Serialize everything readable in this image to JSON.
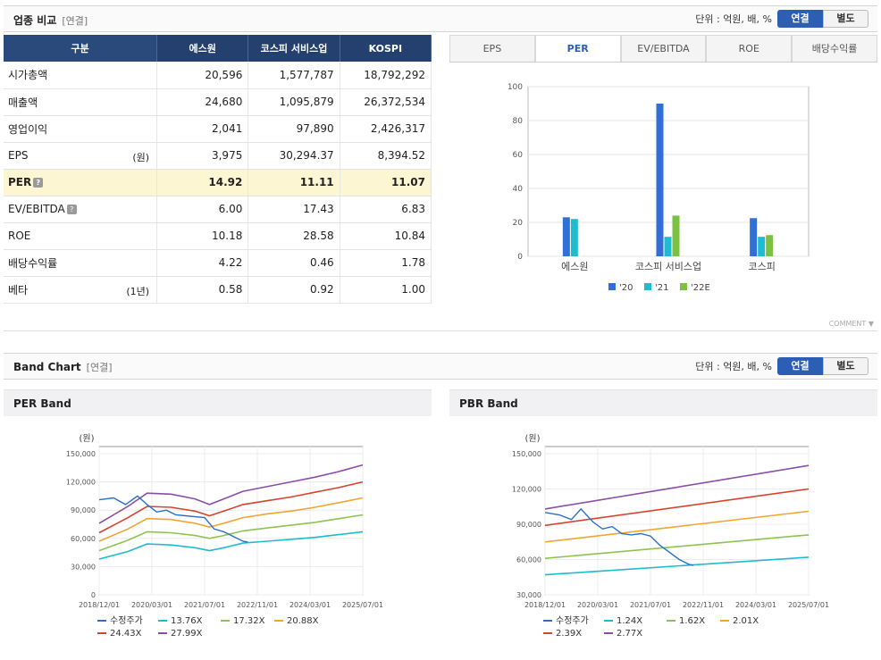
{
  "industry": {
    "title": "업종 비교",
    "subtitle": "[연결]",
    "unit_label": "단위 : 억원, 배, %",
    "toggle_on": "연결",
    "toggle_off": "별도",
    "columns": [
      "구분",
      "에스원",
      "코스피 서비스업",
      "KOSPI"
    ],
    "rows": [
      {
        "label": "시가총액",
        "note": "",
        "values": [
          "20,596",
          "1,577,787",
          "18,792,292"
        ]
      },
      {
        "label": "매출액",
        "note": "",
        "values": [
          "24,680",
          "1,095,879",
          "26,372,534"
        ]
      },
      {
        "label": "영업이익",
        "note": "",
        "values": [
          "2,041",
          "97,890",
          "2,426,317"
        ]
      },
      {
        "label": "EPS",
        "note": "(원)",
        "values": [
          "3,975",
          "30,294.37",
          "8,394.52"
        ]
      },
      {
        "label": "PER",
        "note": "",
        "values": [
          "14.92",
          "11.11",
          "11.07"
        ]
      },
      {
        "label": "EV/EBITDA",
        "note": "",
        "values": [
          "6.00",
          "17.43",
          "6.83"
        ]
      },
      {
        "label": "ROE",
        "note": "",
        "values": [
          "10.18",
          "28.58",
          "10.84"
        ]
      },
      {
        "label": "배당수익률",
        "note": "",
        "values": [
          "4.22",
          "0.46",
          "1.78"
        ]
      },
      {
        "label": "베타",
        "note": "(1년)",
        "values": [
          "0.58",
          "0.92",
          "1.00"
        ]
      }
    ],
    "tabs": [
      "EPS",
      "PER",
      "EV/EBITDA",
      "ROE",
      "배당수익률"
    ],
    "comment_label": "COMMENT ▼"
  },
  "band": {
    "title": "Band Chart",
    "subtitle": "[연결]",
    "unit_label": "단위 : 억원, 배, %",
    "toggle_on": "연결",
    "toggle_off": "별도"
  },
  "colors": {
    "header_navy": "#23406e",
    "accent_blue": "#2c5fb3",
    "highlight_row": "#fdf6d3",
    "bar_20": "#2f6fd6",
    "bar_21": "#1fbcd0",
    "bar_22e": "#7cc242"
  },
  "chart_data": [
    {
      "type": "bar",
      "title": "",
      "categories": [
        "에스원",
        "코스피 서비스업",
        "코스피"
      ],
      "series": [
        {
          "name": "'20",
          "values": [
            23,
            90,
            22.5
          ],
          "color": "#2f6fd6"
        },
        {
          "name": "'21",
          "values": [
            22,
            11.5,
            11.5
          ],
          "color": "#1fbcd0"
        },
        {
          "name": "'22E",
          "values": [
            null,
            24,
            12.5
          ],
          "color": "#7cc242"
        }
      ],
      "ylim": [
        0,
        100
      ],
      "yticks": [
        0,
        20,
        40,
        60,
        80,
        100
      ],
      "legend": "bottom"
    },
    {
      "type": "line",
      "title": "PER Band",
      "ylabel": "(원)",
      "ylim": [
        0,
        150000
      ],
      "yticks": [
        "0",
        "30,000",
        "60,000",
        "90,000",
        "120,000",
        "150,000"
      ],
      "xticks": [
        "2018/12/01",
        "2020/03/01",
        "2021/07/01",
        "2022/11/01",
        "2024/03/01",
        "2025/07/01"
      ],
      "series": [
        {
          "name": "수정주가",
          "color": "#2a6fc9",
          "points": [
            [
              0,
              101000
            ],
            [
              0.3,
              103000
            ],
            [
              0.55,
              96000
            ],
            [
              0.8,
              105000
            ],
            [
              1.0,
              96000
            ],
            [
              1.2,
              88000
            ],
            [
              1.4,
              90000
            ],
            [
              1.6,
              85000
            ],
            [
              1.8,
              84000
            ],
            [
              2.0,
              83000
            ],
            [
              2.2,
              82000
            ],
            [
              2.4,
              70000
            ],
            [
              2.6,
              67000
            ],
            [
              2.8,
              62000
            ],
            [
              3.0,
              57000
            ],
            [
              3.1,
              56000
            ]
          ]
        },
        {
          "name": "13.76X",
          "color": "#1fbcd0",
          "points": [
            [
              0,
              38000
            ],
            [
              0.6,
              46000
            ],
            [
              1.0,
              54000
            ],
            [
              1.5,
              53000
            ],
            [
              2.0,
              50000
            ],
            [
              2.3,
              47000
            ],
            [
              2.6,
              50000
            ],
            [
              3.0,
              55000
            ],
            [
              3.5,
              57000
            ],
            [
              4.0,
              59000
            ],
            [
              4.5,
              61000
            ],
            [
              5.0,
              64000
            ],
            [
              5.5,
              67000
            ]
          ]
        },
        {
          "name": "17.32X",
          "color": "#8dc450",
          "points": [
            [
              0,
              47000
            ],
            [
              0.6,
              58000
            ],
            [
              1.0,
              67000
            ],
            [
              1.5,
              66000
            ],
            [
              2.0,
              63000
            ],
            [
              2.3,
              60000
            ],
            [
              2.6,
              63000
            ],
            [
              3.0,
              68000
            ],
            [
              3.5,
              71000
            ],
            [
              4.0,
              74000
            ],
            [
              4.5,
              77000
            ],
            [
              5.0,
              81000
            ],
            [
              5.5,
              85000
            ]
          ]
        },
        {
          "name": "20.88X",
          "color": "#f0a530",
          "points": [
            [
              0,
              57000
            ],
            [
              0.6,
              70000
            ],
            [
              1.0,
              81000
            ],
            [
              1.5,
              80000
            ],
            [
              2.0,
              76000
            ],
            [
              2.3,
              72000
            ],
            [
              2.6,
              76000
            ],
            [
              3.0,
              82000
            ],
            [
              3.5,
              86000
            ],
            [
              4.0,
              89000
            ],
            [
              4.5,
              93000
            ],
            [
              5.0,
              98000
            ],
            [
              5.5,
              103000
            ]
          ]
        },
        {
          "name": "24.43X",
          "color": "#d8432f",
          "points": [
            [
              0,
              66000
            ],
            [
              0.6,
              82000
            ],
            [
              1.0,
              94000
            ],
            [
              1.5,
              93000
            ],
            [
              2.0,
              89000
            ],
            [
              2.3,
              84000
            ],
            [
              2.6,
              89000
            ],
            [
              3.0,
              96000
            ],
            [
              3.5,
              100000
            ],
            [
              4.0,
              104000
            ],
            [
              4.5,
              109000
            ],
            [
              5.0,
              114000
            ],
            [
              5.5,
              120000
            ]
          ]
        },
        {
          "name": "27.99X",
          "color": "#8a4ea8",
          "points": [
            [
              0,
              76000
            ],
            [
              0.6,
              94000
            ],
            [
              1.0,
              108000
            ],
            [
              1.5,
              107000
            ],
            [
              2.0,
              102000
            ],
            [
              2.3,
              96000
            ],
            [
              2.6,
              102000
            ],
            [
              3.0,
              110000
            ],
            [
              3.5,
              115000
            ],
            [
              4.0,
              120000
            ],
            [
              4.5,
              125000
            ],
            [
              5.0,
              131000
            ],
            [
              5.5,
              138000
            ]
          ]
        }
      ]
    },
    {
      "type": "line",
      "title": "PBR Band",
      "ylabel": "(원)",
      "ylim": [
        30000,
        150000
      ],
      "yticks": [
        "30,000",
        "60,000",
        "90,000",
        "120,000",
        "150,000"
      ],
      "xticks": [
        "2018/12/01",
        "2020/03/01",
        "2021/07/01",
        "2022/11/01",
        "2024/03/01",
        "2025/07/01"
      ],
      "series": [
        {
          "name": "수정주가",
          "color": "#2a6fc9",
          "points": [
            [
              0,
              100000
            ],
            [
              0.3,
              98000
            ],
            [
              0.55,
              94000
            ],
            [
              0.75,
              103000
            ],
            [
              1.0,
              92000
            ],
            [
              1.2,
              86000
            ],
            [
              1.4,
              88000
            ],
            [
              1.6,
              82000
            ],
            [
              1.8,
              81000
            ],
            [
              2.0,
              82000
            ],
            [
              2.2,
              80000
            ],
            [
              2.4,
              72000
            ],
            [
              2.6,
              66000
            ],
            [
              2.8,
              60000
            ],
            [
              3.0,
              56000
            ],
            [
              3.1,
              55000
            ]
          ]
        },
        {
          "name": "1.24X",
          "color": "#1fbcd0",
          "points": [
            [
              0,
              47000
            ],
            [
              5.5,
              62000
            ]
          ]
        },
        {
          "name": "1.62X",
          "color": "#8dc450",
          "points": [
            [
              0,
              61000
            ],
            [
              5.5,
              81000
            ]
          ]
        },
        {
          "name": "2.01X",
          "color": "#f0a530",
          "points": [
            [
              0,
              75000
            ],
            [
              5.5,
              101000
            ]
          ]
        },
        {
          "name": "2.39X",
          "color": "#d8432f",
          "points": [
            [
              0,
              89000
            ],
            [
              5.5,
              120000
            ]
          ]
        },
        {
          "name": "2.77X",
          "color": "#8a4ea8",
          "points": [
            [
              0,
              103000
            ],
            [
              5.5,
              140000
            ]
          ]
        }
      ]
    }
  ]
}
